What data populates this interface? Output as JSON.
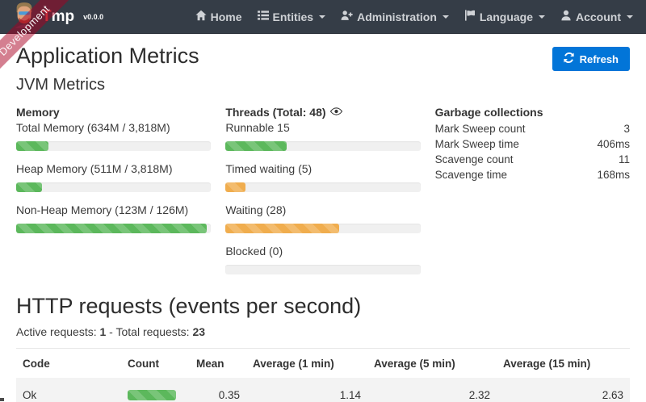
{
  "ribbon": {
    "label": "Development"
  },
  "navbar": {
    "brand": {
      "name_accent": "T",
      "name_rest": "mp",
      "version": "v0.0.0"
    },
    "items": [
      {
        "label": "Home"
      },
      {
        "label": "Entities"
      },
      {
        "label": "Administration"
      },
      {
        "label": "Language"
      },
      {
        "label": "Account"
      }
    ]
  },
  "page": {
    "title": "Application Metrics",
    "refresh_label": "Refresh"
  },
  "jvm": {
    "title": "JVM Metrics",
    "memory": {
      "title": "Memory",
      "items": [
        {
          "label": "Total Memory (634M / 3,818M)",
          "percent": 16.6,
          "color": "green"
        },
        {
          "label": "Heap Memory (511M / 3,818M)",
          "percent": 13.4,
          "color": "green"
        },
        {
          "label": "Non-Heap Memory (123M / 126M)",
          "percent": 97.6,
          "color": "green"
        }
      ]
    },
    "threads": {
      "title": "Threads (Total: 48)",
      "items": [
        {
          "label": "Runnable 15",
          "percent": 31.2,
          "color": "green"
        },
        {
          "label": "Timed waiting (5)",
          "percent": 10.4,
          "color": "orange"
        },
        {
          "label": "Waiting (28)",
          "percent": 58.3,
          "color": "orange"
        },
        {
          "label": "Blocked (0)",
          "percent": 0,
          "color": "red"
        }
      ]
    },
    "gc": {
      "title": "Garbage collections",
      "rows": [
        {
          "label": "Mark Sweep count",
          "value": "3"
        },
        {
          "label": "Mark Sweep time",
          "value": "406ms"
        },
        {
          "label": "Scavenge count",
          "value": "11"
        },
        {
          "label": "Scavenge time",
          "value": "168ms"
        }
      ]
    }
  },
  "http": {
    "title": "HTTP requests (events per second)",
    "active_label": "Active requests:",
    "active_value": "1",
    "separator": " - ",
    "total_label": "Total requests:",
    "total_value": "23",
    "table": {
      "headers": [
        "Code",
        "Count",
        "Mean",
        "Average (1 min)",
        "Average (5 min)",
        "Average (15 min)"
      ],
      "rows": [
        {
          "code": "Ok",
          "count_percent": 100,
          "count_color": "green",
          "mean": "0.35",
          "avg1": "1.14",
          "avg5": "2.32",
          "avg15": "2.63"
        }
      ]
    }
  },
  "colors": {
    "navbar_bg": "#353d47",
    "ribbon_bg": "rgba(170,0,33,0.5)",
    "primary": "#0275d8",
    "success": "#5cb85c",
    "warning": "#f0ad4e"
  }
}
